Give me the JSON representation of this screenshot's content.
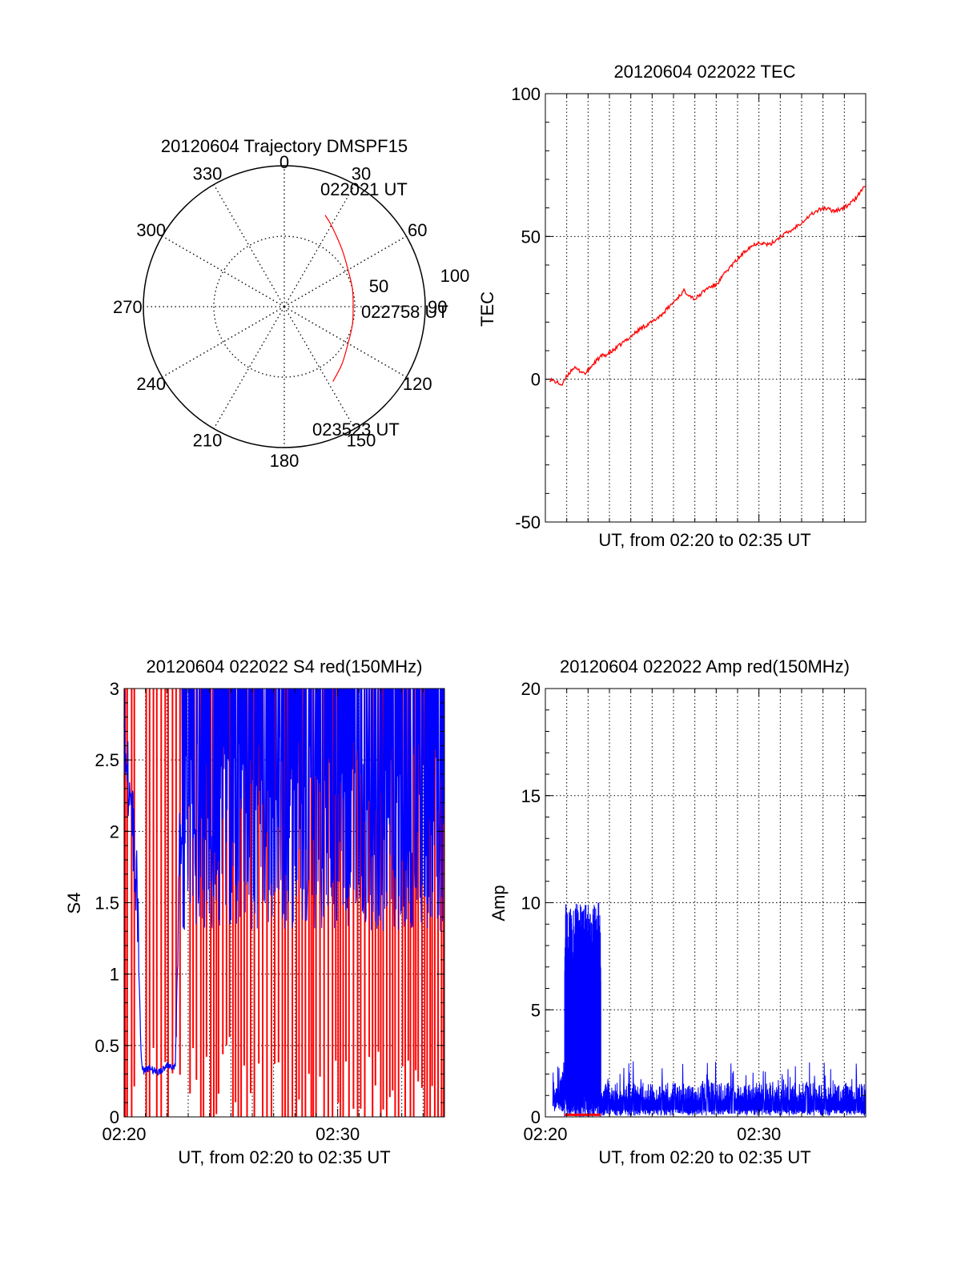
{
  "chart_data": [
    {
      "id": "polar",
      "type": "polar-trajectory",
      "title": "20120604 Trajectory DMSPF15",
      "azimuth_labels": [
        "0",
        "30",
        "60",
        "90",
        "120",
        "150",
        "180",
        "210",
        "240",
        "270",
        "300",
        "330"
      ],
      "elevation_labels": [
        "50",
        "100"
      ],
      "trajectory": {
        "points": [
          [
            24,
            64
          ],
          [
            30,
            60
          ],
          [
            45,
            52
          ],
          [
            60,
            47
          ],
          [
            75,
            45
          ],
          [
            90,
            44
          ],
          [
            105,
            45
          ],
          [
            120,
            47
          ],
          [
            135,
            52
          ],
          [
            147,
            57
          ]
        ],
        "start_label": "022021 UT",
        "mid_label": "022758 UT",
        "end_label": "023523 UT",
        "color": "#ff0000"
      }
    },
    {
      "id": "tec",
      "type": "line",
      "title": "20120604 022022 TEC",
      "ylabel": "TEC",
      "xlabel": "UT, from 02:20 to 02:35 UT",
      "xlim": [
        0,
        15
      ],
      "ylim": [
        -50,
        100
      ],
      "yticks": [
        "100",
        "50",
        "0",
        "-50"
      ],
      "x_gridlines_minutes": [
        1,
        2,
        3,
        4,
        5,
        6,
        7,
        8,
        9,
        10,
        11,
        12,
        13,
        14
      ],
      "series": [
        {
          "color": "#ff0000",
          "x": [
            0.2,
            0.5,
            0.8,
            1.0,
            1.3,
            1.6,
            1.9,
            2.2,
            2.6,
            3.0,
            3.5,
            4.0,
            4.5,
            5.0,
            5.5,
            6.0,
            6.5,
            7.0,
            7.3,
            7.6,
            8.0,
            8.5,
            9.0,
            9.5,
            10.0,
            10.5,
            11.0,
            11.5,
            12.0,
            12.5,
            13.0,
            13.5,
            14.0,
            14.5,
            15.0
          ],
          "y": [
            0,
            -1,
            -2,
            1,
            4,
            3,
            2,
            5,
            8,
            9,
            12,
            15,
            18,
            20,
            23,
            27,
            31,
            28,
            30,
            32,
            33,
            38,
            42,
            46,
            48,
            47,
            50,
            52,
            55,
            58,
            60,
            59,
            60,
            63,
            68
          ]
        }
      ]
    },
    {
      "id": "s4",
      "type": "line",
      "title": "20120604 022022 S4 red(150MHz)",
      "ylabel": "S4",
      "xlabel": "UT, from 02:20 to 02:35 UT",
      "xlim": [
        0,
        15
      ],
      "ylim": [
        0,
        3
      ],
      "yticks": [
        "3",
        "2.5",
        "2",
        "1.5",
        "1",
        "0.5",
        "0"
      ],
      "xticks": [
        {
          "x": 0,
          "label": "02:20"
        },
        {
          "x": 10,
          "label": "02:30"
        }
      ],
      "x_gridlines_minutes": [
        1,
        2,
        3,
        4,
        5,
        6,
        7,
        8,
        9,
        10,
        11,
        12,
        13,
        14
      ],
      "series": [
        {
          "name": "",
          "color": "#0000ff",
          "x": [
            0,
            0.3,
            0.6,
            0.8,
            0.9,
            1.2,
            1.6,
            2.0,
            2.4,
            2.6,
            2.8,
            3.0,
            3.2,
            3.5
          ],
          "y": [
            2.8,
            2.2,
            1.6,
            0.4,
            0.32,
            0.34,
            0.31,
            0.36,
            0.35,
            1.9,
            2.3,
            1.8,
            2.4,
            2.6
          ]
        }
      ],
      "dense_band": {
        "from_x": 2.7,
        "to_x": 15,
        "blue_min": 1.3,
        "blue_max": 3.0,
        "red_spikes_from_x": 0.0
      }
    },
    {
      "id": "amp",
      "type": "line",
      "title": "20120604 022022 Amp red(150MHz)",
      "ylabel": "Amp",
      "xlabel": "UT, from 02:20 to 02:35 UT",
      "xlim": [
        0,
        15
      ],
      "ylim": [
        0,
        20
      ],
      "yticks": [
        "20",
        "15",
        "10",
        "5",
        "0"
      ],
      "xticks": [
        {
          "x": 0,
          "label": "02:20"
        },
        {
          "x": 10,
          "label": "02:30"
        }
      ],
      "x_gridlines_minutes": [
        1,
        2,
        3,
        4,
        5,
        6,
        7,
        8,
        9,
        10,
        11,
        12,
        13,
        14
      ],
      "burst": {
        "from_x": 0.9,
        "to_x": 2.6,
        "max": 10.0,
        "typical": 7.5
      },
      "baseline": {
        "from_x": 2.6,
        "to_x": 15,
        "max": 2.6,
        "typical": 1.2
      },
      "red_floor": {
        "from_x": 0.9,
        "to_x": 2.6,
        "value": 0.1
      }
    }
  ]
}
